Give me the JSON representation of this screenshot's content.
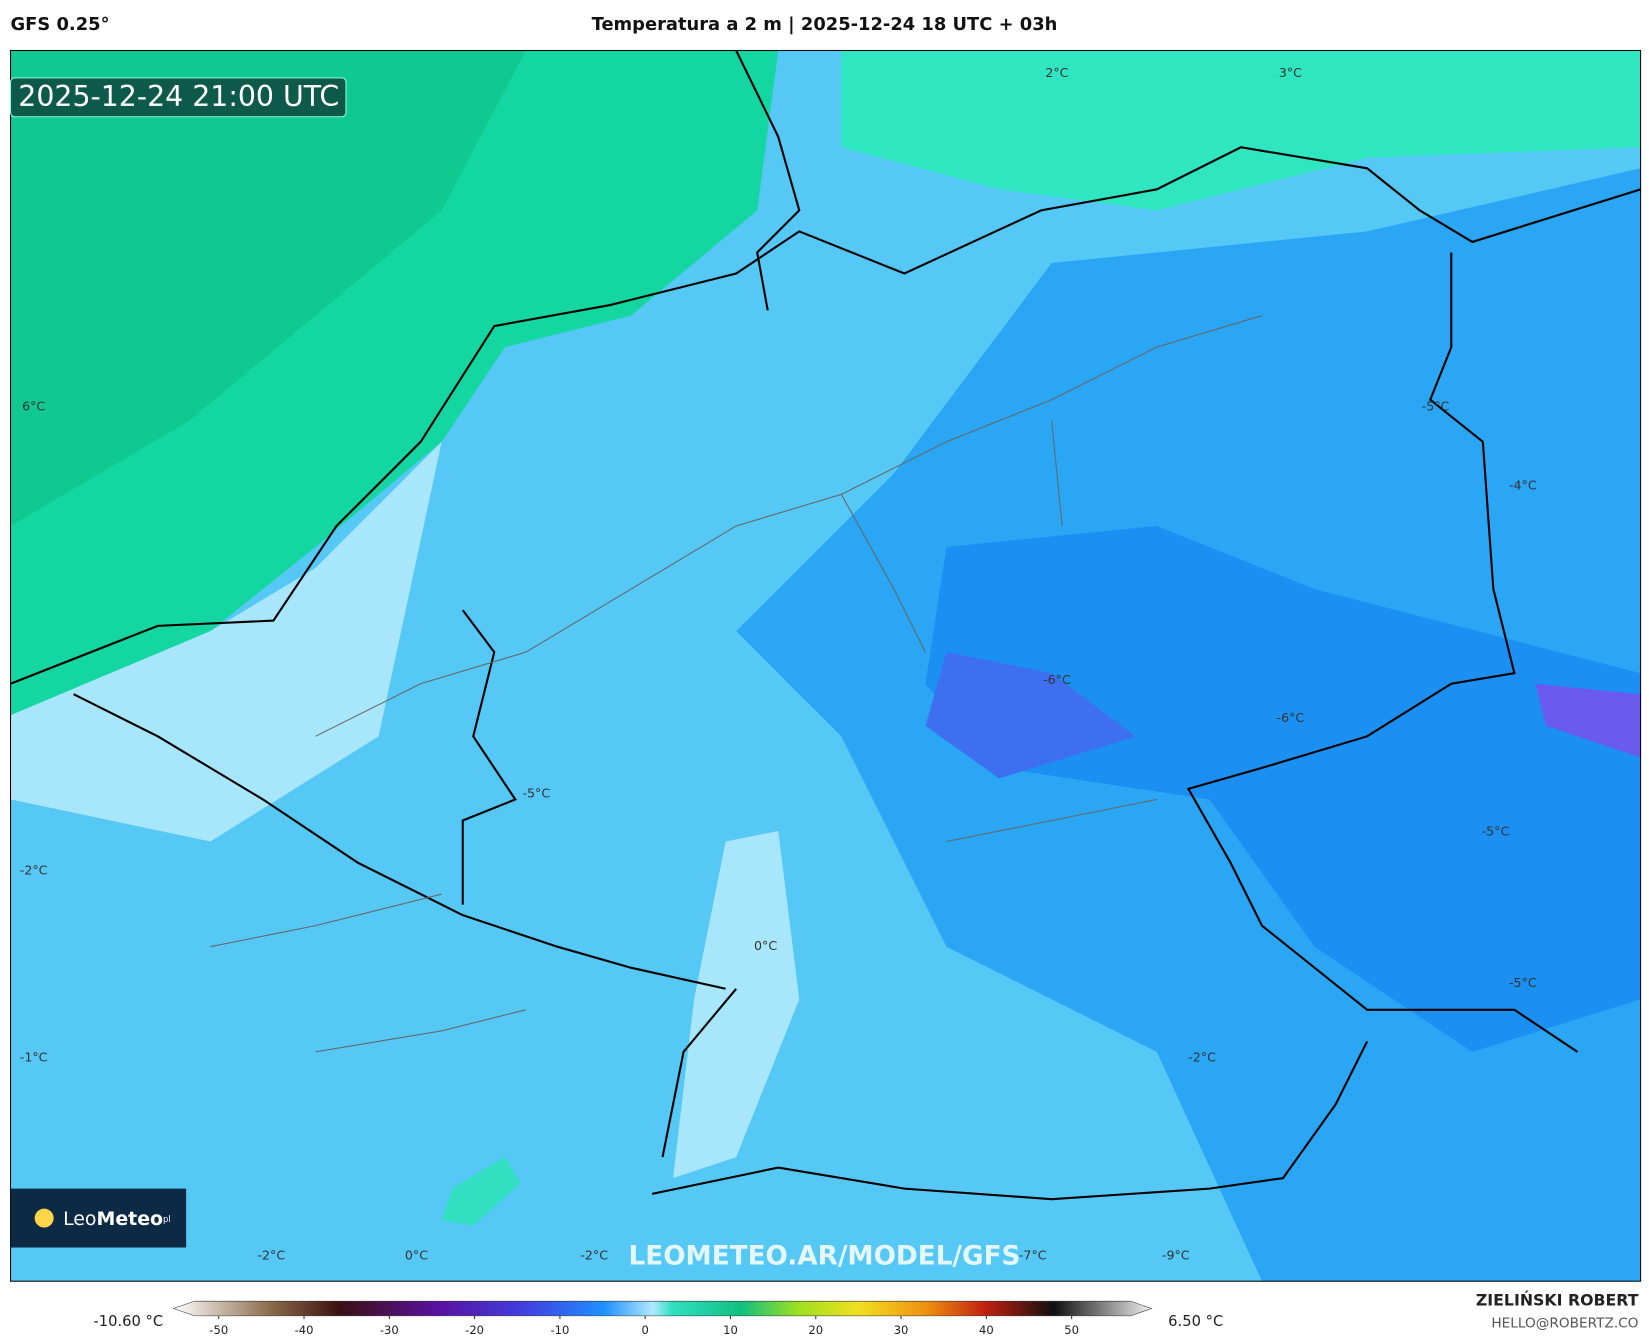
{
  "header": {
    "model": "GFS 0.25°",
    "title": "Temperatura a 2 m | 2025-12-24 18 UTC + 03h"
  },
  "timestamp": "2025-12-24 21:00 UTC",
  "map_labels": [
    "2°C",
    "3°C",
    "6°C",
    "-5°C",
    "-4°C",
    "-6°C",
    "-6°C",
    "-5°C",
    "-5°C",
    "-2°C",
    "0°C",
    "-5°C",
    "-2°C",
    "-1°C",
    "-2°C",
    "0°C",
    "-2°C",
    "-7°C",
    "-9°C"
  ],
  "watermark": "LEOMETEO.AR/MODEL/GFS",
  "logo": {
    "part1": "Leo",
    "part2": "Meteo",
    "suffix": "pl"
  },
  "colorbar": {
    "min_label": "-10.60 °C",
    "max_label": "6.50 °C",
    "ticks": [
      -50,
      -40,
      -30,
      -20,
      -10,
      0,
      10,
      20,
      30,
      40,
      50
    ]
  },
  "credits": {
    "author": "ZIELIŃSKI ROBERT",
    "email": "HELLO@ROBERTZ.CO"
  }
}
